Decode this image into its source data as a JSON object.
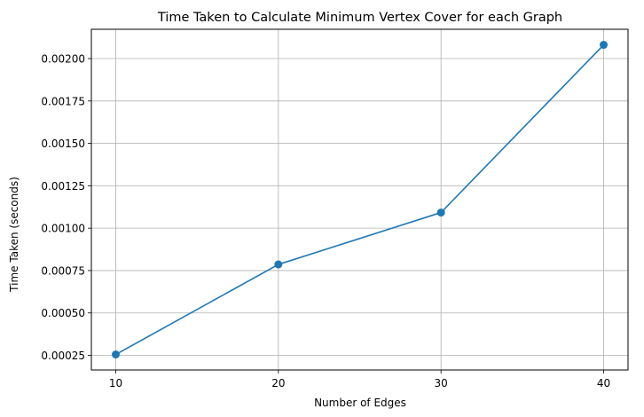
{
  "chart_data": {
    "type": "line",
    "title": "Time Taken to Calculate Minimum Vertex Cover for each Graph",
    "xlabel": "Number of Edges",
    "ylabel": "Time Taken (seconds)",
    "x": [
      10,
      20,
      30,
      40
    ],
    "series": [
      {
        "values": [
          0.000255,
          0.000786,
          0.001092,
          0.002081
        ],
        "color": "#1f77b4",
        "marker": "circle"
      }
    ],
    "xticks": [
      "10",
      "20",
      "30",
      "40"
    ],
    "yticks": [
      "0.00025",
      "0.00050",
      "0.00075",
      "0.00100",
      "0.00125",
      "0.00150",
      "0.00175",
      "0.00200"
    ],
    "xlim": [
      8.5,
      41.5
    ],
    "ylim": [
      0.0001637,
      0.0021728
    ],
    "grid": true
  }
}
